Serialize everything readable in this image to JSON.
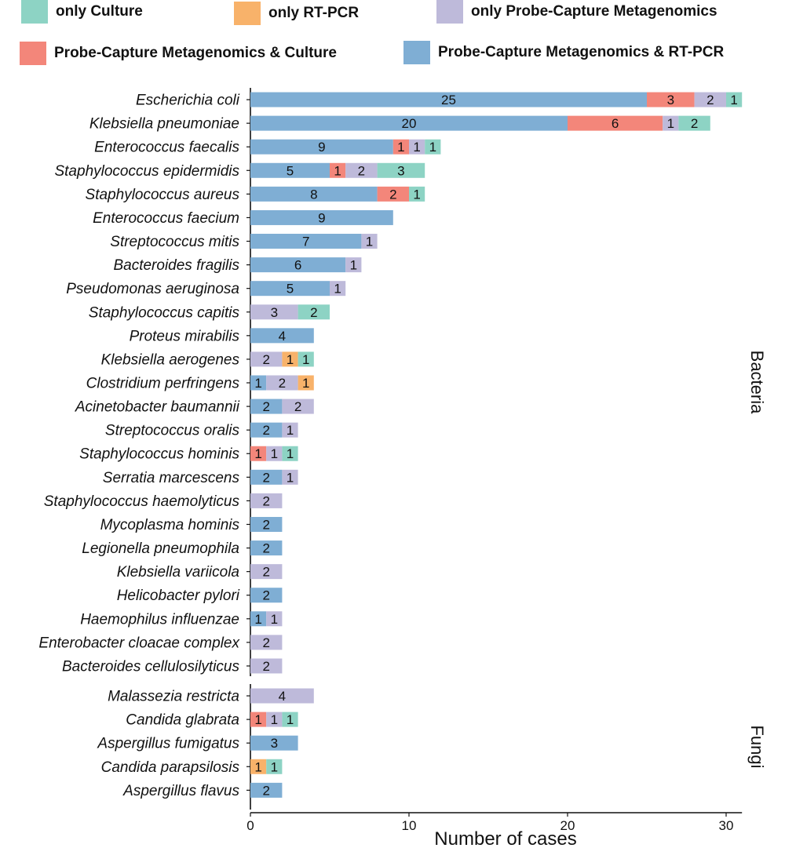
{
  "legend": [
    {
      "key": "culture",
      "label": "only Culture",
      "color": "#8dd3c4"
    },
    {
      "key": "rtpcr",
      "label": "only RT-PCR",
      "color": "#f8b26a"
    },
    {
      "key": "pcm",
      "label": "only Probe-Capture Metagenomics",
      "color": "#bebada"
    },
    {
      "key": "pcm_culture",
      "label": "Probe-Capture Metagenomics & Culture",
      "color": "#f3867a"
    },
    {
      "key": "pcm_rtpcr",
      "label": "Probe-Capture Metagenomics & RT-PCR",
      "color": "#7faed4"
    }
  ],
  "chart_data": {
    "type": "bar",
    "orientation": "horizontal",
    "stacked": true,
    "xlabel": "Number of cases",
    "xlim": [
      0,
      31
    ],
    "xticks": [
      0,
      10,
      20,
      30
    ],
    "segment_order": [
      "pcm_rtpcr",
      "rtpcr",
      "pcm_culture",
      "pcm",
      "culture"
    ],
    "facets": [
      {
        "label": "Bacteria",
        "rows": [
          {
            "name": "Escherichia coli",
            "pcm_rtpcr": 25,
            "pcm_culture": 3,
            "pcm": 2,
            "culture": 1
          },
          {
            "name": "Klebsiella pneumoniae",
            "pcm_rtpcr": 20,
            "pcm_culture": 6,
            "pcm": 1,
            "culture": 2
          },
          {
            "name": "Enterococcus faecalis",
            "pcm_rtpcr": 9,
            "pcm_culture": 1,
            "pcm": 1,
            "culture": 1
          },
          {
            "name": "Staphylococcus epidermidis",
            "pcm_rtpcr": 5,
            "pcm_culture": 1,
            "pcm": 2,
            "culture": 3
          },
          {
            "name": "Staphylococcus aureus",
            "pcm_rtpcr": 8,
            "pcm_culture": 2,
            "culture": 1
          },
          {
            "name": "Enterococcus faecium",
            "pcm_rtpcr": 9
          },
          {
            "name": "Streptococcus mitis",
            "pcm_rtpcr": 7,
            "pcm": 1
          },
          {
            "name": "Bacteroides fragilis",
            "pcm_rtpcr": 6,
            "pcm": 1
          },
          {
            "name": "Pseudomonas aeruginosa",
            "pcm_rtpcr": 5,
            "pcm": 1
          },
          {
            "name": "Staphylococcus capitis",
            "pcm": 3,
            "culture": 2
          },
          {
            "name": "Proteus mirabilis",
            "pcm_rtpcr": 4
          },
          {
            "name": "Klebsiella aerogenes",
            "pcm": 2,
            "rtpcr": 1,
            "culture": 1,
            "order": [
              "pcm",
              "rtpcr",
              "culture"
            ]
          },
          {
            "name": "Clostridium perfringens",
            "pcm_rtpcr": 1,
            "pcm": 2,
            "rtpcr": 1,
            "order": [
              "pcm_rtpcr",
              "pcm",
              "rtpcr"
            ]
          },
          {
            "name": "Acinetobacter baumannii",
            "pcm_rtpcr": 2,
            "pcm": 2
          },
          {
            "name": "Streptococcus oralis",
            "pcm_rtpcr": 2,
            "pcm": 1
          },
          {
            "name": "Staphylococcus hominis",
            "pcm_culture": 1,
            "pcm": 1,
            "culture": 1
          },
          {
            "name": "Serratia marcescens",
            "pcm_rtpcr": 2,
            "pcm": 1
          },
          {
            "name": "Staphylococcus haemolyticus",
            "pcm": 2
          },
          {
            "name": "Mycoplasma hominis",
            "pcm_rtpcr": 2
          },
          {
            "name": "Legionella pneumophila",
            "pcm_rtpcr": 2
          },
          {
            "name": "Klebsiella variicola",
            "pcm": 2
          },
          {
            "name": "Helicobacter pylori",
            "pcm_rtpcr": 2
          },
          {
            "name": "Haemophilus influenzae",
            "pcm_rtpcr": 1,
            "pcm": 1
          },
          {
            "name": "Enterobacter cloacae complex",
            "pcm": 2
          },
          {
            "name": "Bacteroides cellulosilyticus",
            "pcm": 2
          }
        ]
      },
      {
        "label": "Fungi",
        "rows": [
          {
            "name": "Malassezia restricta",
            "pcm": 4
          },
          {
            "name": "Candida glabrata",
            "pcm_culture": 1,
            "pcm": 1,
            "culture": 1
          },
          {
            "name": "Aspergillus fumigatus",
            "pcm_rtpcr": 3
          },
          {
            "name": "Candida parapsilosis",
            "rtpcr": 1,
            "culture": 1
          },
          {
            "name": "Aspergillus flavus",
            "pcm_rtpcr": 2
          }
        ]
      }
    ]
  }
}
